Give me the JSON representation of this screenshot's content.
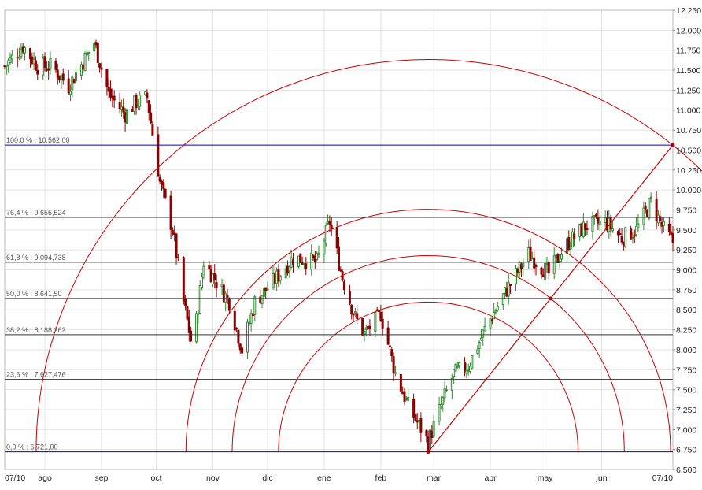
{
  "chart_data": {
    "type": "candlestick",
    "title": "",
    "xlabel": "",
    "ylabel": "",
    "ylim": [
      6.5,
      12.25
    ],
    "y_ticks": [
      "12.250",
      "12.000",
      "11.750",
      "11.500",
      "11.250",
      "11.000",
      "10.750",
      "10.500",
      "10.250",
      "10.000",
      "9.750",
      "9.500",
      "9.250",
      "9.000",
      "8.750",
      "8.500",
      "8.250",
      "8.000",
      "7.750",
      "7.500",
      "7.250",
      "7.000",
      "6.750",
      "6.500"
    ],
    "x_range": [
      "2023-07-10",
      "2024-07-10"
    ],
    "x_ticks": [
      {
        "label": "07/10",
        "date": "2023-07-10"
      },
      {
        "label": "ago",
        "date": "2023-08-01"
      },
      {
        "label": "sep",
        "date": "2023-09-01"
      },
      {
        "label": "oct",
        "date": "2023-10-01"
      },
      {
        "label": "nov",
        "date": "2023-11-01"
      },
      {
        "label": "dic",
        "date": "2023-12-01"
      },
      {
        "label": "ene",
        "date": "2024-01-01"
      },
      {
        "label": "feb",
        "date": "2024-02-01"
      },
      {
        "label": "mar",
        "date": "2024-03-01"
      },
      {
        "label": "abr",
        "date": "2024-04-01"
      },
      {
        "label": "may",
        "date": "2024-05-01"
      },
      {
        "label": "jun",
        "date": "2024-06-01"
      },
      {
        "label": "07/10",
        "date": "2024-07-10"
      }
    ],
    "grid": true,
    "up_color": "#2e8b2e",
    "down_color": "#8b0000",
    "guide_color": "#cc0000",
    "fib_levels": [
      {
        "label": "100,0 % : 10.562,00",
        "value": 10.562,
        "color": "#0000cc"
      },
      {
        "label": "76,4 % : 9.655,524",
        "value": 9.655524,
        "color": "#333333"
      },
      {
        "label": "61,8 % : 9.094,738",
        "value": 9.094738,
        "color": "#333333"
      },
      {
        "label": "50,0 % : 8.641,50",
        "value": 8.6415,
        "color": "#333333"
      },
      {
        "label": "38,2 % : 8.188,262",
        "value": 8.188262,
        "color": "#333333"
      },
      {
        "label": "23,6 % : 7.627,476",
        "value": 7.627476,
        "color": "#333333"
      },
      {
        "label": "0,0 % : 6.721,00",
        "value": 6.721,
        "color": "#0000cc"
      }
    ],
    "fan_center": {
      "date": "2024-02-27",
      "value": 6.721
    },
    "fan_end": {
      "date": "2024-07-10",
      "value": 10.562
    },
    "fan_levels": [
      0.382,
      0.5,
      0.618,
      1.0
    ],
    "trend_path": [
      {
        "date": "2023-07-10",
        "value": 11.55
      },
      {
        "date": "2023-07-20",
        "value": 11.8
      },
      {
        "date": "2023-07-28",
        "value": 11.55
      },
      {
        "date": "2023-08-05",
        "value": 11.55
      },
      {
        "date": "2023-08-14",
        "value": 11.3
      },
      {
        "date": "2023-08-23",
        "value": 11.65
      },
      {
        "date": "2023-08-28",
        "value": 11.85
      },
      {
        "date": "2023-09-05",
        "value": 11.2
      },
      {
        "date": "2023-09-14",
        "value": 10.95
      },
      {
        "date": "2023-09-20",
        "value": 11.1
      },
      {
        "date": "2023-09-26",
        "value": 11.15
      },
      {
        "date": "2023-10-03",
        "value": 10.1
      },
      {
        "date": "2023-10-10",
        "value": 9.5
      },
      {
        "date": "2023-10-16",
        "value": 8.6
      },
      {
        "date": "2023-10-21",
        "value": 8.0
      },
      {
        "date": "2023-10-27",
        "value": 9.1
      },
      {
        "date": "2023-11-03",
        "value": 8.85
      },
      {
        "date": "2023-11-10",
        "value": 8.6
      },
      {
        "date": "2023-11-17",
        "value": 8.0
      },
      {
        "date": "2023-11-24",
        "value": 8.6
      },
      {
        "date": "2023-12-04",
        "value": 8.85
      },
      {
        "date": "2023-12-15",
        "value": 9.15
      },
      {
        "date": "2023-12-28",
        "value": 9.1
      },
      {
        "date": "2024-01-04",
        "value": 9.6
      },
      {
        "date": "2024-01-11",
        "value": 8.9
      },
      {
        "date": "2024-01-18",
        "value": 8.4
      },
      {
        "date": "2024-01-23",
        "value": 8.2
      },
      {
        "date": "2024-02-01",
        "value": 8.45
      },
      {
        "date": "2024-02-09",
        "value": 7.7
      },
      {
        "date": "2024-02-16",
        "value": 7.3
      },
      {
        "date": "2024-02-22",
        "value": 7.05
      },
      {
        "date": "2024-02-27",
        "value": 6.85
      },
      {
        "date": "2024-03-05",
        "value": 7.3
      },
      {
        "date": "2024-03-12",
        "value": 7.7
      },
      {
        "date": "2024-03-20",
        "value": 7.8
      },
      {
        "date": "2024-03-30",
        "value": 8.3
      },
      {
        "date": "2024-04-10",
        "value": 8.75
      },
      {
        "date": "2024-04-22",
        "value": 9.2
      },
      {
        "date": "2024-05-03",
        "value": 8.95
      },
      {
        "date": "2024-05-12",
        "value": 9.3
      },
      {
        "date": "2024-05-23",
        "value": 9.55
      },
      {
        "date": "2024-06-03",
        "value": 9.6
      },
      {
        "date": "2024-06-12",
        "value": 9.4
      },
      {
        "date": "2024-06-20",
        "value": 9.5
      },
      {
        "date": "2024-06-28",
        "value": 9.85
      },
      {
        "date": "2024-07-05",
        "value": 9.5
      },
      {
        "date": "2024-07-10",
        "value": 9.35
      }
    ]
  }
}
